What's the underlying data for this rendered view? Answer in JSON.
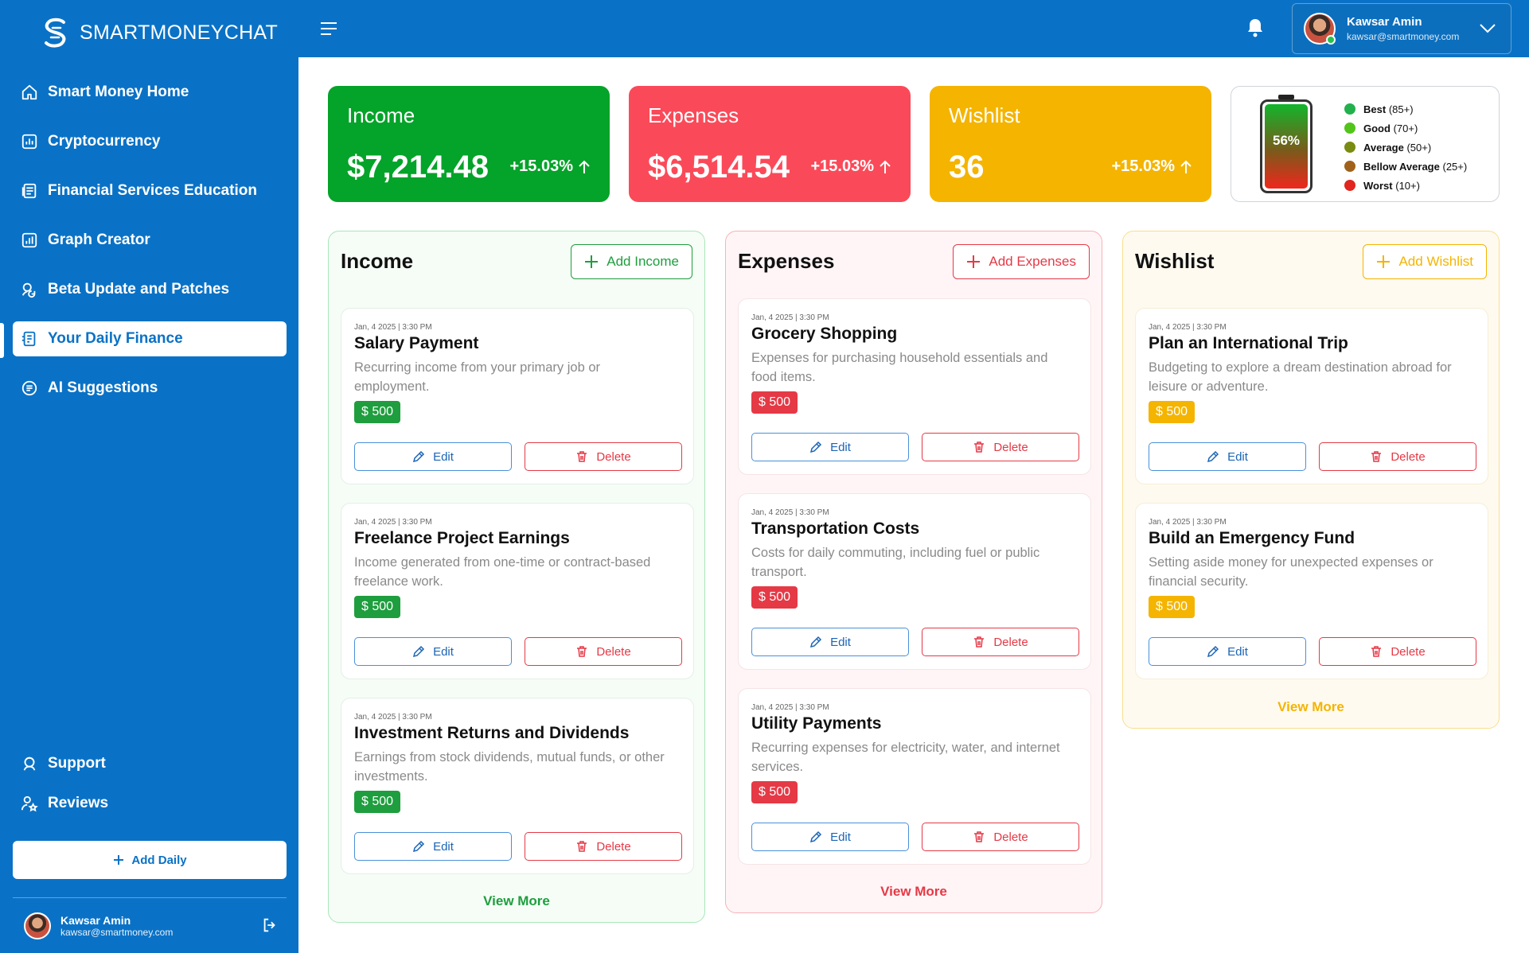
{
  "brand": {
    "name": "SMARTMONEYCHAT"
  },
  "sidebar": {
    "items": [
      {
        "label": "Smart Money Home",
        "icon": "home-icon"
      },
      {
        "label": "Cryptocurrency",
        "icon": "chart-box-icon"
      },
      {
        "label": "Financial Services Education",
        "icon": "document-icon"
      },
      {
        "label": "Graph Creator",
        "icon": "graph-icon"
      },
      {
        "label": "Beta Update and Patches",
        "icon": "update-icon"
      },
      {
        "label": "Your Daily Finance",
        "icon": "finance-icon",
        "active": true
      },
      {
        "label": "AI Suggestions",
        "icon": "ai-icon"
      }
    ],
    "bottom_items": [
      {
        "label": "Support",
        "icon": "support-icon"
      },
      {
        "label": "Reviews",
        "icon": "reviews-icon"
      }
    ],
    "add_daily_label": "Add Daily",
    "user": {
      "name": "Kawsar Amin",
      "email": "kawsar@smartmoney.com"
    }
  },
  "header": {
    "user": {
      "name": "Kawsar Amin",
      "email": "kawsar@smartmoney.com"
    }
  },
  "stats": {
    "income": {
      "label": "Income",
      "value": "$7,214.48",
      "delta": "+15.03%"
    },
    "expenses": {
      "label": "Expenses",
      "value": "$6,514.54",
      "delta": "+15.03%"
    },
    "wishlist": {
      "label": "Wishlist",
      "value": "36",
      "delta": "+15.03%"
    }
  },
  "score": {
    "percent_label": "56%",
    "level": 0.56,
    "legend": [
      {
        "label": "Best",
        "range": "(85+)",
        "color": "#22b14c"
      },
      {
        "label": "Good",
        "range": "(70+)",
        "color": "#52c41a"
      },
      {
        "label": "Average",
        "range": "(50+)",
        "color": "#7a8b12"
      },
      {
        "label": "Bellow Average",
        "range": "(25+)",
        "color": "#a0621a"
      },
      {
        "label": "Worst",
        "range": "(10+)",
        "color": "#e0261e"
      }
    ]
  },
  "panels": {
    "income": {
      "title": "Income",
      "add_label": "Add Income",
      "view_more": "View More",
      "items": [
        {
          "date": "Jan, 4 2025",
          "time": "3:30 PM",
          "title": "Salary Payment",
          "desc": "Recurring income from your primary job or employment.",
          "amount": "$ 500"
        },
        {
          "date": "Jan, 4 2025",
          "time": "3:30 PM",
          "title": "Freelance Project Earnings",
          "desc": "Income generated from one-time or contract-based freelance work.",
          "amount": "$ 500"
        },
        {
          "date": "Jan, 4 2025",
          "time": "3:30 PM",
          "title": "Investment Returns and Dividends",
          "desc": "Earnings from stock dividends, mutual funds, or other investments.",
          "amount": "$ 500"
        }
      ]
    },
    "expenses": {
      "title": "Expenses",
      "add_label": "Add Expenses",
      "view_more": "View More",
      "items": [
        {
          "date": "Jan, 4 2025",
          "time": "3:30 PM",
          "title": "Grocery Shopping",
          "desc": "Expenses for purchasing household essentials and food items.",
          "amount": "$ 500"
        },
        {
          "date": "Jan, 4 2025",
          "time": "3:30 PM",
          "title": "Transportation Costs",
          "desc": "Costs for daily commuting, including fuel or public transport.",
          "amount": "$ 500"
        },
        {
          "date": "Jan, 4 2025",
          "time": "3:30 PM",
          "title": "Utility Payments",
          "desc": "Recurring expenses for electricity, water, and internet services.",
          "amount": "$ 500"
        }
      ]
    },
    "wishlist": {
      "title": "Wishlist",
      "add_label": "Add Wishlist",
      "view_more": "View More",
      "items": [
        {
          "date": "Jan, 4 2025",
          "time": "3:30 PM",
          "title": "Plan an International Trip",
          "desc": "Budgeting to explore a dream destination abroad for leisure or adventure.",
          "amount": "$ 500"
        },
        {
          "date": "Jan, 4 2025",
          "time": "3:30 PM",
          "title": "Build an Emergency Fund",
          "desc": "Setting aside money for unexpected expenses or financial security.",
          "amount": "$ 500"
        }
      ]
    }
  },
  "card_actions": {
    "edit": "Edit",
    "delete": "Delete"
  }
}
